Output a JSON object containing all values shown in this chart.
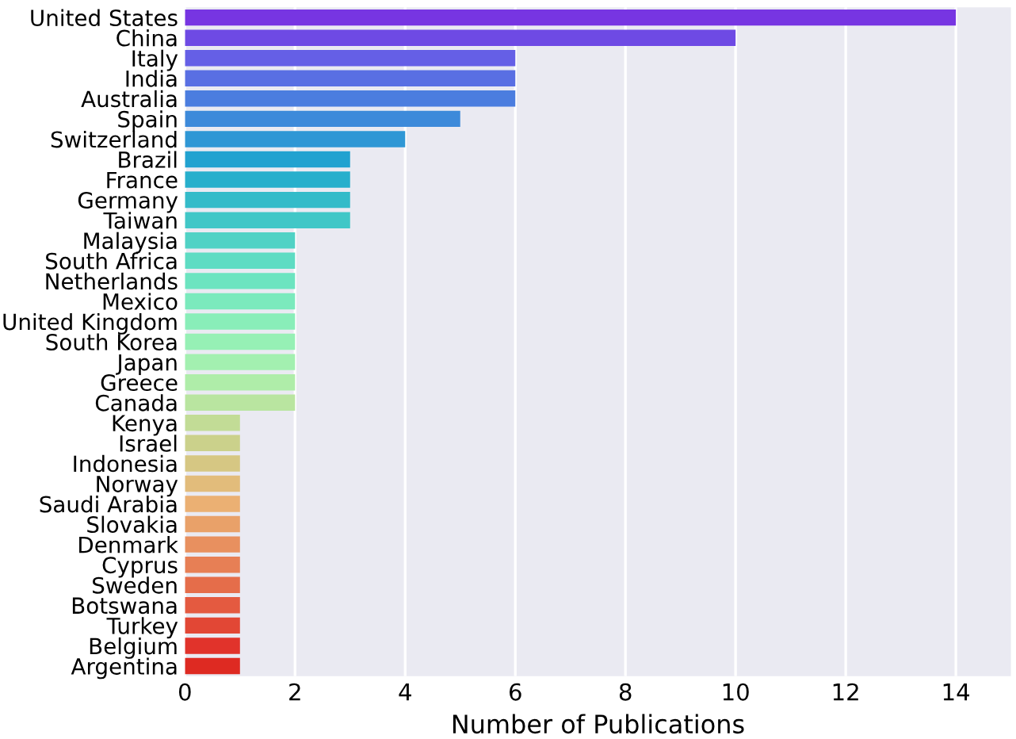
{
  "chart_data": {
    "type": "bar",
    "orientation": "horizontal",
    "xlabel": "Number of Publications",
    "categories": [
      "United States",
      "China",
      "Italy",
      "India",
      "Australia",
      "Spain",
      "Switzerland",
      "Brazil",
      "France",
      "Germany",
      "Taiwan",
      "Malaysia",
      "South Africa",
      "Netherlands",
      "Mexico",
      "United Kingdom",
      "South Korea",
      "Japan",
      "Greece",
      "Canada",
      "Kenya",
      "Israel",
      "Indonesia",
      "Norway",
      "Saudi Arabia",
      "Slovakia",
      "Denmark",
      "Cyprus",
      "Sweden",
      "Botswana",
      "Turkey",
      "Belgium",
      "Argentina"
    ],
    "values": [
      14,
      10,
      6,
      6,
      6,
      5,
      4,
      3,
      3,
      3,
      3,
      2,
      2,
      2,
      2,
      2,
      2,
      2,
      2,
      2,
      1,
      1,
      1,
      1,
      1,
      1,
      1,
      1,
      1,
      1,
      1,
      1,
      1
    ],
    "colors": [
      "#7735e2",
      "#6e4ae4",
      "#655fe6",
      "#596fe3",
      "#4b7ddf",
      "#3d8ada",
      "#2f97d5",
      "#21a2d0",
      "#27afcc",
      "#34bbc9",
      "#41c7c7",
      "#50d2c5",
      "#5edcc3",
      "#6ce4c0",
      "#7beabd",
      "#89eeb9",
      "#96f0b5",
      "#a3f0b0",
      "#afeda9",
      "#b9e5a0",
      "#c2dc96",
      "#cbd18b",
      "#d6c783",
      "#e2bc7b",
      "#ebb073",
      "#e9a169",
      "#e8905f",
      "#e77f55",
      "#e56d4a",
      "#e45a40",
      "#e24735",
      "#e1332b",
      "#de2a22"
    ],
    "xlim": [
      0,
      15
    ],
    "xticks": [
      0,
      2,
      4,
      6,
      8,
      10,
      12,
      14
    ],
    "grid": "x"
  }
}
